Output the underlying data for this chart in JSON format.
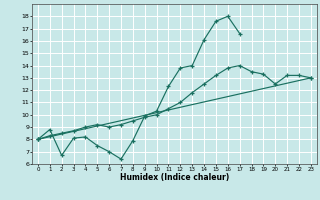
{
  "bg_color": "#c8e8e8",
  "grid_color": "#ffffff",
  "line_color": "#1a7060",
  "xlabel": "Humidex (Indice chaleur)",
  "ylim": [
    6,
    19
  ],
  "xlim": [
    -0.5,
    23.5
  ],
  "yticks": [
    6,
    7,
    8,
    9,
    10,
    11,
    12,
    13,
    14,
    15,
    16,
    17,
    18
  ],
  "xticks": [
    0,
    1,
    2,
    3,
    4,
    5,
    6,
    7,
    8,
    9,
    10,
    11,
    12,
    13,
    14,
    15,
    16,
    17,
    18,
    19,
    20,
    21,
    22,
    23
  ],
  "line1_x": [
    0,
    1,
    2,
    3,
    4,
    5,
    6,
    7,
    8,
    9,
    10,
    11,
    12,
    13,
    14,
    15,
    16,
    17
  ],
  "line1_y": [
    8.0,
    8.8,
    6.7,
    8.1,
    8.2,
    7.5,
    7.0,
    6.4,
    7.9,
    9.9,
    10.3,
    12.3,
    13.8,
    14.0,
    16.1,
    17.6,
    18.0,
    16.6
  ],
  "line2_x": [
    0,
    1,
    2,
    3,
    4,
    5,
    6,
    7,
    8,
    9,
    10,
    11,
    12,
    13,
    14,
    15,
    16,
    17,
    18,
    19,
    20,
    21,
    22,
    23
  ],
  "line2_y": [
    8.0,
    8.3,
    8.5,
    8.7,
    9.0,
    9.2,
    9.0,
    9.2,
    9.5,
    9.8,
    10.0,
    10.5,
    11.0,
    11.8,
    12.5,
    13.2,
    13.8,
    14.0,
    13.5,
    13.3,
    12.5,
    13.2,
    13.2,
    13.0
  ],
  "line3_x": [
    0,
    23
  ],
  "line3_y": [
    8.0,
    13.0
  ]
}
